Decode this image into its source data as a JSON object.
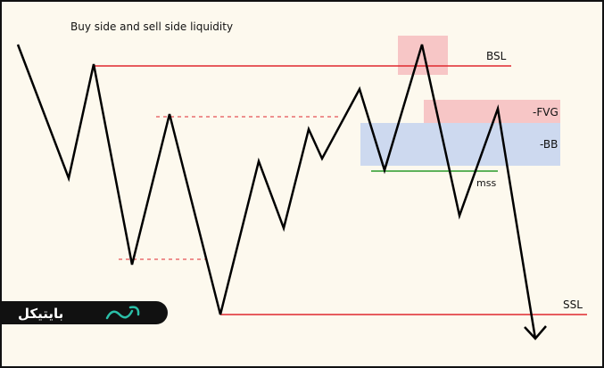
{
  "title": "Buy side and sell side liquidity",
  "labels": {
    "bsl": "BSL",
    "fvg": "-FVG",
    "bb": "-BB",
    "mss": "mss",
    "ssl": "SSL"
  },
  "logo": {
    "text": "بایتیکل"
  }
}
